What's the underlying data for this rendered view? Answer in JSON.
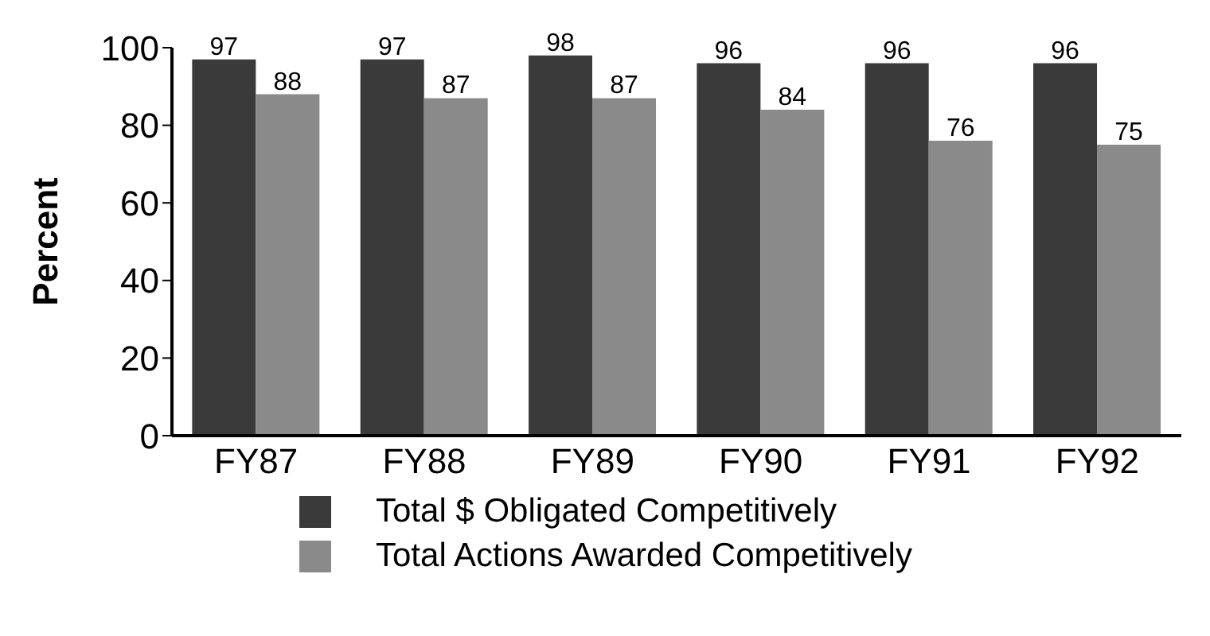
{
  "chart_data": {
    "type": "bar",
    "ylabel": "Percent",
    "categories": [
      "FY87",
      "FY88",
      "FY89",
      "FY90",
      "FY91",
      "FY92"
    ],
    "series": [
      {
        "name": "Total $ Obligated Competitively",
        "color": "#3a3a3a",
        "values": [
          97,
          97,
          98,
          96,
          96,
          96
        ]
      },
      {
        "name": "Total Actions Awarded Competitively",
        "color": "#8a8a8a",
        "values": [
          88,
          87,
          87,
          84,
          76,
          75
        ]
      }
    ],
    "ylim": [
      0,
      100
    ],
    "yticks": [
      0,
      20,
      40,
      60,
      80,
      100
    ],
    "grid": false,
    "legend": "bottom left",
    "data_labels": true
  }
}
